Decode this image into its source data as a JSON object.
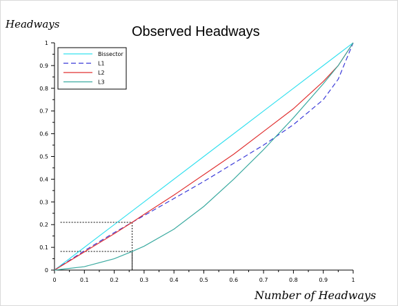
{
  "chart_data": {
    "type": "line",
    "title": "Observed Headways",
    "xlabel": "Number of Headways",
    "ylabel": "Headways",
    "xlim": [
      0,
      1
    ],
    "ylim": [
      0,
      1
    ],
    "xticks": [
      "0",
      "0.1",
      "0.2",
      "0.3",
      "0.4",
      "0.5",
      "0.6",
      "0.7",
      "0.8",
      "0.9",
      "1"
    ],
    "yticks": [
      "0",
      "0.1",
      "0.2",
      "0.3",
      "0.4",
      "0.5",
      "0.6",
      "0.7",
      "0.8",
      "0.9",
      "1"
    ],
    "grid": false,
    "legend_position": "top-left",
    "series": [
      {
        "name": "Bissector",
        "color": "#33e0ef",
        "style": "solid",
        "x": [
          0,
          0.1,
          0.2,
          0.3,
          0.4,
          0.5,
          0.6,
          0.7,
          0.8,
          0.9,
          1
        ],
        "y": [
          0,
          0.1,
          0.2,
          0.3,
          0.4,
          0.5,
          0.6,
          0.7,
          0.8,
          0.9,
          1
        ]
      },
      {
        "name": "L1",
        "color": "#3a3ad8",
        "style": "dashed",
        "x": [
          0,
          0.1,
          0.2,
          0.26,
          0.3,
          0.4,
          0.5,
          0.6,
          0.7,
          0.8,
          0.9,
          0.95,
          1
        ],
        "y": [
          0,
          0.085,
          0.165,
          0.21,
          0.24,
          0.315,
          0.39,
          0.47,
          0.55,
          0.64,
          0.75,
          0.84,
          1
        ]
      },
      {
        "name": "L2",
        "color": "#e03030",
        "style": "solid",
        "x": [
          0,
          0.1,
          0.2,
          0.26,
          0.3,
          0.4,
          0.5,
          0.6,
          0.7,
          0.8,
          0.9,
          0.95,
          1
        ],
        "y": [
          0,
          0.08,
          0.16,
          0.21,
          0.245,
          0.33,
          0.42,
          0.51,
          0.61,
          0.71,
          0.83,
          0.9,
          1
        ]
      },
      {
        "name": "L3",
        "color": "#3aaaa0",
        "style": "solid",
        "x": [
          0,
          0.1,
          0.2,
          0.26,
          0.3,
          0.4,
          0.5,
          0.6,
          0.7,
          0.8,
          0.9,
          0.95,
          1
        ],
        "y": [
          0,
          0.015,
          0.05,
          0.082,
          0.105,
          0.18,
          0.28,
          0.4,
          0.53,
          0.67,
          0.82,
          0.9,
          1
        ]
      }
    ],
    "reference_lines": [
      {
        "x": 0.26,
        "y": 0.21,
        "color": "#000000",
        "style": "dotted"
      },
      {
        "x": 0.26,
        "y": 0.082,
        "color": "#000000",
        "style": "dotted"
      }
    ]
  }
}
